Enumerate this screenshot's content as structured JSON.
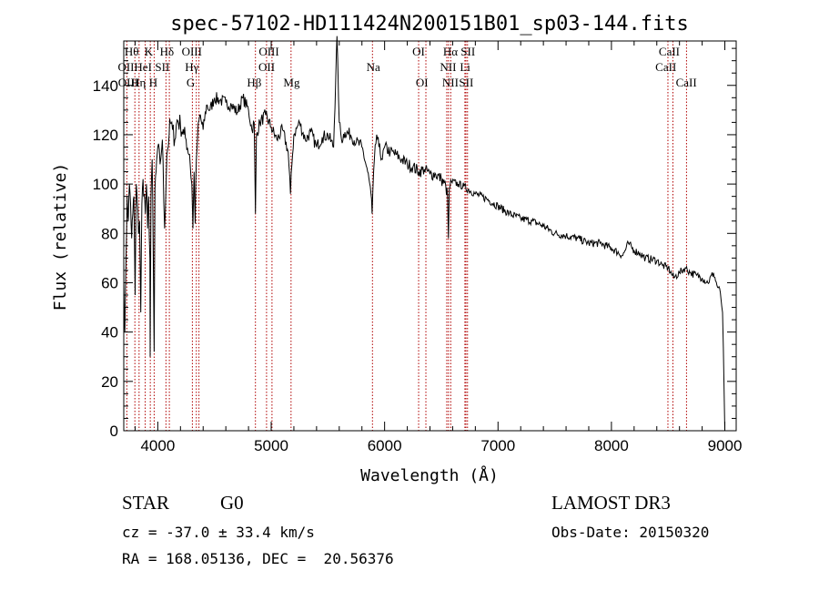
{
  "chart_data": {
    "type": "line",
    "title": "spec-57102-HD111424N200151B01_sp03-144.fits",
    "xlabel": "Wavelength (Å)",
    "ylabel": "Flux (relative)",
    "xlim": [
      3700,
      9100
    ],
    "ylim": [
      0,
      158
    ],
    "xticks": [
      4000,
      5000,
      6000,
      7000,
      8000,
      9000
    ],
    "xtick_labels": [
      "4000",
      "5000",
      "6000",
      "7000",
      "8000",
      "9000"
    ],
    "yticks": [
      0,
      20,
      40,
      60,
      80,
      100,
      120,
      140
    ],
    "ytick_labels": [
      "0",
      "20",
      "40",
      "60",
      "80",
      "100",
      "120",
      "140"
    ],
    "series": [
      {
        "name": "flux",
        "x": [
          3700,
          3710,
          3720,
          3730,
          3740,
          3750,
          3760,
          3770,
          3780,
          3790,
          3800,
          3810,
          3820,
          3830,
          3840,
          3850,
          3860,
          3870,
          3880,
          3890,
          3900,
          3910,
          3920,
          3930,
          3933,
          3940,
          3950,
          3960,
          3968,
          3975,
          3985,
          4000,
          4020,
          4040,
          4060,
          4080,
          4100,
          4110,
          4130,
          4150,
          4170,
          4200,
          4230,
          4250,
          4280,
          4300,
          4310,
          4320,
          4330,
          4340,
          4350,
          4370,
          4400,
          4430,
          4460,
          4500,
          4550,
          4600,
          4650,
          4700,
          4750,
          4800,
          4830,
          4850,
          4861,
          4870,
          4900,
          4950,
          5000,
          5050,
          5100,
          5150,
          5170,
          5183,
          5200,
          5250,
          5300,
          5350,
          5400,
          5450,
          5500,
          5550,
          5580,
          5600,
          5620,
          5650,
          5700,
          5750,
          5800,
          5850,
          5880,
          5890,
          5896,
          5910,
          5930,
          5950,
          5980,
          6000,
          6050,
          6100,
          6150,
          6200,
          6250,
          6300,
          6350,
          6400,
          6450,
          6500,
          6540,
          6555,
          6563,
          6570,
          6590,
          6650,
          6700,
          6800,
          6900,
          7000,
          7100,
          7200,
          7300,
          7400,
          7500,
          7600,
          7700,
          7800,
          7900,
          8000,
          8100,
          8150,
          8200,
          8250,
          8300,
          8400,
          8450,
          8500,
          8550,
          8600,
          8650,
          8700,
          8750,
          8800,
          8850,
          8900,
          8930,
          8960,
          8980,
          9000
        ],
        "values": [
          60,
          40,
          70,
          95,
          85,
          100,
          92,
          78,
          88,
          95,
          55,
          100,
          92,
          80,
          85,
          48,
          92,
          102,
          96,
          88,
          100,
          82,
          95,
          70,
          30,
          95,
          110,
          72,
          32,
          98,
          105,
          115,
          108,
          118,
          82,
          112,
          120,
          125,
          122,
          118,
          126,
          124,
          120,
          118,
          112,
          100,
          82,
          105,
          84,
          110,
          118,
          128,
          122,
          132,
          130,
          135,
          134,
          133,
          132,
          129,
          135,
          130,
          122,
          125,
          88,
          120,
          125,
          128,
          123,
          118,
          122,
          113,
          96,
          108,
          120,
          125,
          118,
          121,
          115,
          119,
          120,
          115,
          160,
          125,
          118,
          121,
          120,
          117,
          115,
          105,
          96,
          88,
          97,
          110,
          120,
          115,
          110,
          115,
          113,
          112,
          110,
          108,
          107,
          105,
          106,
          104,
          104,
          102,
          99,
          95,
          78,
          98,
          101,
          100,
          99,
          96,
          94,
          91,
          88,
          86,
          85,
          83,
          80,
          79,
          78,
          76,
          76,
          74,
          71,
          76,
          73,
          72,
          70,
          69,
          67,
          66,
          62,
          64,
          66,
          64,
          63,
          62,
          60,
          64,
          59,
          56,
          48,
          0
        ]
      }
    ],
    "lines": [
      {
        "label": "Hθ",
        "x": 3798
      },
      {
        "label": "OII",
        "x": 3727
      },
      {
        "label": "Hη",
        "x": 3835
      },
      {
        "label": "HeI",
        "x": 3889
      },
      {
        "label": "K",
        "x": 3934
      },
      {
        "label": "H",
        "x": 3968
      },
      {
        "label": "SII",
        "x": 4072
      },
      {
        "label": "Hδ",
        "x": 4102
      },
      {
        "label": "OIII",
        "x": 4363
      },
      {
        "label": "Hγ",
        "x": 4340
      },
      {
        "label": "G",
        "x": 4305
      },
      {
        "label": "Hβ",
        "x": 4861
      },
      {
        "label": "OIII",
        "x": 4959
      },
      {
        "label": "OIII",
        "x": 5007
      },
      {
        "label": "Mg",
        "x": 5175
      },
      {
        "label": "Na",
        "x": 5893
      },
      {
        "label": "OI",
        "x": 6300
      },
      {
        "label": "OI",
        "x": 6364
      },
      {
        "label": "Hα",
        "x": 6563
      },
      {
        "label": "NII",
        "x": 6548
      },
      {
        "label": "NII",
        "x": 6583
      },
      {
        "label": "Li",
        "x": 6708
      },
      {
        "label": "SII",
        "x": 6717
      },
      {
        "label": "SII",
        "x": 6731
      },
      {
        "label": "CaII",
        "x": 8498
      },
      {
        "label": "CaII",
        "x": 8542
      },
      {
        "label": "CaII",
        "x": 8662
      }
    ],
    "line_labels": [
      {
        "text": "Hθ",
        "row": 0,
        "x": 3770
      },
      {
        "text": "K",
        "row": 0,
        "x": 3920
      },
      {
        "text": "Hδ",
        "row": 0,
        "x": 4080
      },
      {
        "text": "OIII",
        "row": 0,
        "x": 4300
      },
      {
        "text": "OIII",
        "row": 0,
        "x": 4980
      },
      {
        "text": "OI",
        "row": 0,
        "x": 6300
      },
      {
        "text": "Hα",
        "row": 0,
        "x": 6580
      },
      {
        "text": "SII",
        "row": 0,
        "x": 6735
      },
      {
        "text": "CaII",
        "row": 0,
        "x": 8510
      },
      {
        "text": "OII",
        "row": 1,
        "x": 3720
      },
      {
        "text": "HeI",
        "row": 1,
        "x": 3870
      },
      {
        "text": "SII",
        "row": 1,
        "x": 4040
      },
      {
        "text": "Hγ",
        "row": 1,
        "x": 4300
      },
      {
        "text": "OII",
        "row": 1,
        "x": 4960
      },
      {
        "text": "Na",
        "row": 1,
        "x": 5900
      },
      {
        "text": "NII",
        "row": 1,
        "x": 6560
      },
      {
        "text": "Li",
        "row": 1,
        "x": 6710
      },
      {
        "text": "CaII",
        "row": 1,
        "x": 8480
      },
      {
        "text": "OIII",
        "row": 2,
        "x": 3740
      },
      {
        "text": "Hη",
        "row": 2,
        "x": 3830
      },
      {
        "text": "H",
        "row": 2,
        "x": 3960
      },
      {
        "text": "G",
        "row": 2,
        "x": 4290
      },
      {
        "text": "Hβ",
        "row": 2,
        "x": 4850
      },
      {
        "text": "Mg",
        "row": 2,
        "x": 5180
      },
      {
        "text": "OI",
        "row": 2,
        "x": 6330
      },
      {
        "text": "NII",
        "row": 2,
        "x": 6580
      },
      {
        "text": "SII",
        "row": 2,
        "x": 6720
      },
      {
        "text": "CaII",
        "row": 2,
        "x": 8660
      }
    ],
    "line_color": "#b00000",
    "trace_color": "#000000"
  },
  "info": {
    "object_class": "STAR",
    "subclass": "G0",
    "survey": "LAMOST DR3",
    "redshift": "cz = -37.0 ± 33.4 km/s",
    "obs_date": "Obs-Date: 20150320",
    "coords": "RA = 168.05136, DEC =  20.56376"
  }
}
